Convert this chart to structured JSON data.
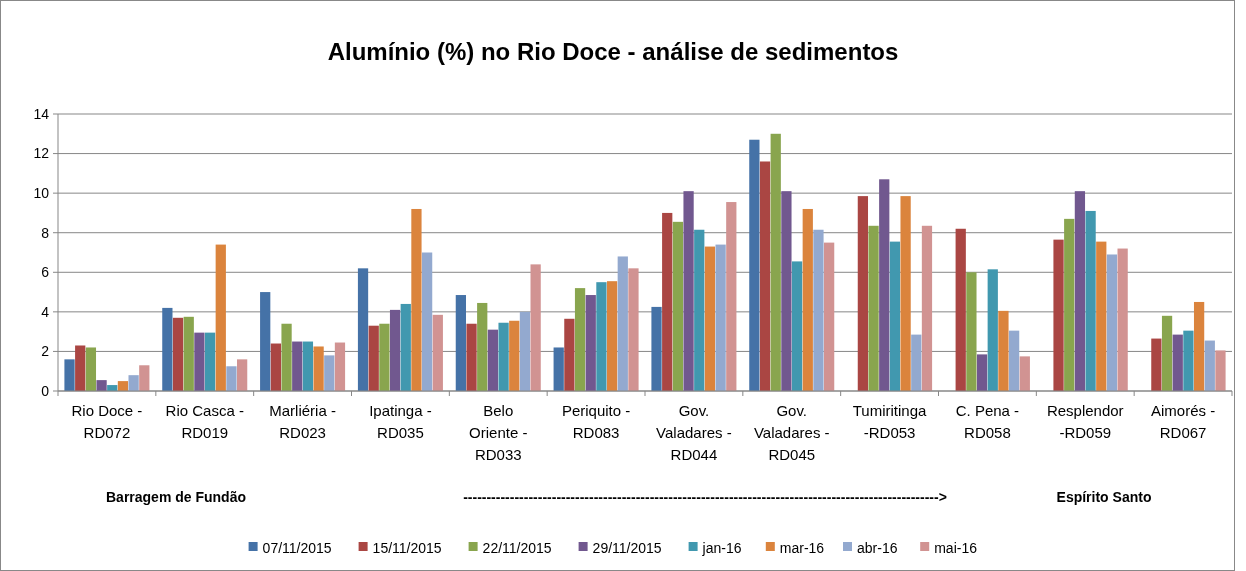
{
  "chart_data": {
    "type": "bar",
    "title": "Alumínio (%) no Rio Doce - análise de sedimentos",
    "categories": [
      "Rio Doce - RD072",
      "Rio Casca - RD019",
      "Marliéria - RD023",
      "Ipatinga - RD035",
      "Belo Oriente - RD033",
      "Periquito - RD083",
      "Gov. Valadares - RD044",
      "Gov. Valadares - RD045",
      "Tumiritinga -RD053",
      "C. Pena - RD058",
      "Resplendor -RD059",
      "Aimorés - RD067"
    ],
    "series": [
      {
        "name": "07/11/2015",
        "color": "#4572a7",
        "values": [
          1.6,
          4.2,
          5.0,
          6.2,
          4.85,
          2.2,
          4.25,
          12.7,
          null,
          null,
          null,
          null
        ]
      },
      {
        "name": "15/11/2015",
        "color": "#aa4643",
        "values": [
          2.3,
          3.7,
          2.4,
          3.3,
          3.4,
          3.65,
          9.0,
          11.6,
          9.85,
          8.2,
          7.65,
          2.65
        ]
      },
      {
        "name": "22/11/2015",
        "color": "#89a54e",
        "values": [
          2.2,
          3.75,
          3.4,
          3.4,
          4.45,
          5.2,
          8.55,
          13.0,
          8.35,
          6.0,
          8.7,
          3.8
        ]
      },
      {
        "name": "29/11/2015",
        "color": "#71588f",
        "values": [
          0.55,
          2.95,
          2.5,
          4.1,
          3.1,
          4.85,
          10.1,
          10.1,
          10.7,
          1.85,
          10.1,
          2.85
        ]
      },
      {
        "name": "jan-16",
        "color": "#4198af",
        "values": [
          0.3,
          2.95,
          2.5,
          4.4,
          3.45,
          5.5,
          8.15,
          6.55,
          7.55,
          6.15,
          9.1,
          3.05
        ]
      },
      {
        "name": "mar-16",
        "color": "#db843d",
        "values": [
          0.5,
          7.4,
          2.25,
          9.2,
          3.55,
          5.55,
          7.3,
          9.2,
          9.85,
          4.05,
          7.55,
          4.5
        ]
      },
      {
        "name": "abr-16",
        "color": "#93a9cf",
        "values": [
          0.8,
          1.25,
          1.8,
          7.0,
          4.0,
          6.8,
          7.4,
          8.15,
          2.85,
          3.05,
          6.9,
          2.55
        ]
      },
      {
        "name": "mai-16",
        "color": "#d19392",
        "values": [
          1.3,
          1.6,
          2.45,
          3.85,
          6.4,
          6.2,
          9.55,
          7.5,
          8.35,
          1.75,
          7.2,
          2.05
        ]
      }
    ],
    "ylim": [
      0,
      14
    ],
    "yticks": [
      0,
      2,
      4,
      6,
      8,
      10,
      12,
      14
    ],
    "grid": "y",
    "legend": "bottom",
    "annotations": [
      "Barragem de Fundão",
      "------------------------------------------------------------------------------------------------------>",
      "Espírito Santo"
    ]
  }
}
